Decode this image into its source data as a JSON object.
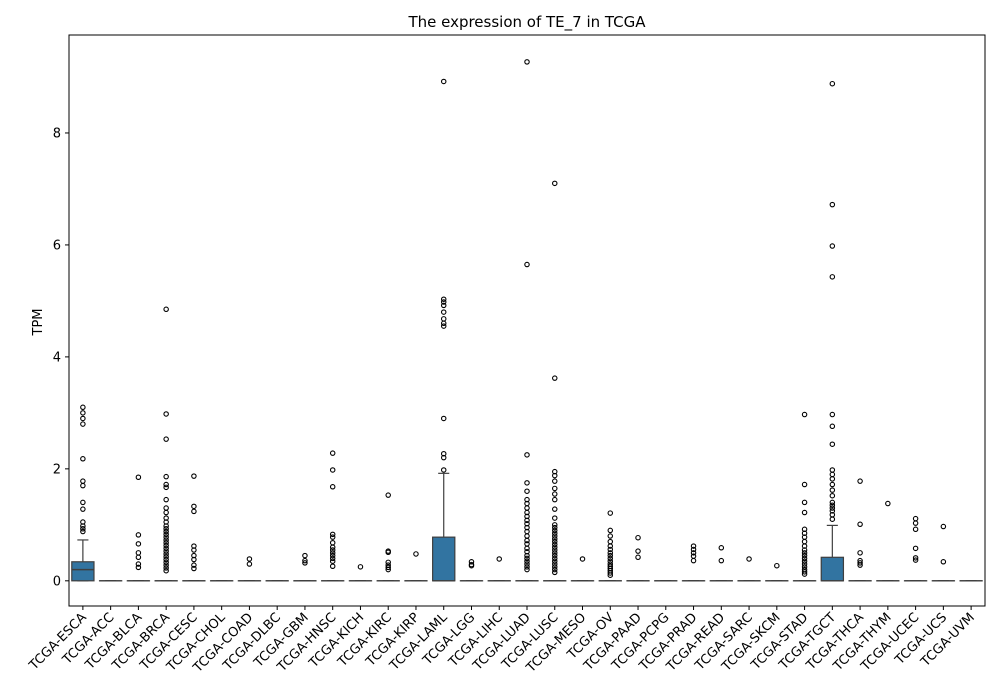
{
  "chart_data": {
    "type": "box",
    "title": "The expression of TE_7 in TCGA",
    "xlabel": "",
    "ylabel": "TPM",
    "ylim": [
      -0.45,
      9.75
    ],
    "yticks": [
      0,
      2,
      4,
      6,
      8
    ],
    "grid": false,
    "legend": "none",
    "box_color": "#3274a1",
    "categories": [
      "TCGA-ESCA",
      "TCGA-ACC",
      "TCGA-BLCA",
      "TCGA-BRCA",
      "TCGA-CESC",
      "TCGA-CHOL",
      "TCGA-COAD",
      "TCGA-DLBC",
      "TCGA-GBM",
      "TCGA-HNSC",
      "TCGA-KICH",
      "TCGA-KIRC",
      "TCGA-KIRP",
      "TCGA-LAML",
      "TCGA-LGG",
      "TCGA-LIHC",
      "TCGA-LUAD",
      "TCGA-LUSC",
      "TCGA-MESO",
      "TCGA-OV",
      "TCGA-PAAD",
      "TCGA-PCPG",
      "TCGA-PRAD",
      "TCGA-READ",
      "TCGA-SARC",
      "TCGA-SKCM",
      "TCGA-STAD",
      "TCGA-TGCT",
      "TCGA-THCA",
      "TCGA-THYM",
      "TCGA-UCEC",
      "TCGA-UCS",
      "TCGA-UVM"
    ],
    "boxes": [
      {
        "whislo": 0,
        "q1": 0,
        "med": 0.2,
        "q3": 0.34,
        "whishi": 0.73,
        "fliers": [
          3.1,
          3.0,
          2.9,
          2.8,
          2.18,
          1.78,
          1.7,
          1.4,
          1.28,
          1.05,
          0.98,
          0.93,
          0.88
        ]
      },
      {
        "whislo": 0,
        "q1": 0,
        "med": 0,
        "q3": 0,
        "whishi": 0,
        "fliers": []
      },
      {
        "whislo": 0,
        "q1": 0,
        "med": 0,
        "q3": 0,
        "whishi": 0,
        "fliers": [
          1.85,
          0.82,
          0.66,
          0.5,
          0.42,
          0.3,
          0.24
        ]
      },
      {
        "whislo": 0,
        "q1": 0,
        "med": 0,
        "q3": 0,
        "whishi": 0,
        "fliers": [
          4.85,
          2.98,
          2.53,
          1.86,
          1.72,
          1.67,
          1.45,
          1.3,
          1.22,
          1.12,
          1.05,
          0.98,
          0.93,
          0.88,
          0.83,
          0.78,
          0.73,
          0.68,
          0.63,
          0.58,
          0.53,
          0.48,
          0.43,
          0.38,
          0.33,
          0.28,
          0.23,
          0.18
        ]
      },
      {
        "whislo": 0,
        "q1": 0,
        "med": 0,
        "q3": 0,
        "whishi": 0,
        "fliers": [
          1.87,
          1.33,
          1.24,
          0.62,
          0.55,
          0.45,
          0.38,
          0.28,
          0.22
        ]
      },
      {
        "whislo": 0,
        "q1": 0,
        "med": 0,
        "q3": 0,
        "whishi": 0,
        "fliers": []
      },
      {
        "whislo": 0,
        "q1": 0,
        "med": 0,
        "q3": 0,
        "whishi": 0,
        "fliers": [
          0.39,
          0.3
        ]
      },
      {
        "whislo": 0,
        "q1": 0,
        "med": 0,
        "q3": 0,
        "whishi": 0,
        "fliers": []
      },
      {
        "whislo": 0,
        "q1": 0,
        "med": 0,
        "q3": 0,
        "whishi": 0,
        "fliers": [
          0.45,
          0.36,
          0.32
        ]
      },
      {
        "whislo": 0,
        "q1": 0,
        "med": 0,
        "q3": 0,
        "whishi": 0,
        "fliers": [
          2.28,
          1.98,
          1.68,
          0.83,
          0.78,
          0.68,
          0.6,
          0.55,
          0.5,
          0.45,
          0.4,
          0.35,
          0.26
        ]
      },
      {
        "whislo": 0,
        "q1": 0,
        "med": 0,
        "q3": 0,
        "whishi": 0,
        "fliers": [
          0.25
        ]
      },
      {
        "whislo": 0,
        "q1": 0,
        "med": 0,
        "q3": 0,
        "whishi": 0,
        "fliers": [
          1.53,
          0.53,
          0.51,
          0.33,
          0.28,
          0.24,
          0.2
        ]
      },
      {
        "whislo": 0,
        "q1": 0,
        "med": 0,
        "q3": 0,
        "whishi": 0,
        "fliers": [
          0.48
        ]
      },
      {
        "whislo": 0,
        "q1": 0,
        "med": 0,
        "q3": 0.78,
        "whishi": 1.92,
        "fliers": [
          8.92,
          5.03,
          4.98,
          4.92,
          4.8,
          4.68,
          4.6,
          4.55,
          2.9,
          2.27,
          2.2,
          1.98
        ]
      },
      {
        "whislo": 0,
        "q1": 0,
        "med": 0,
        "q3": 0,
        "whishi": 0,
        "fliers": [
          0.34,
          0.29,
          0.27
        ]
      },
      {
        "whislo": 0,
        "q1": 0,
        "med": 0,
        "q3": 0,
        "whishi": 0,
        "fliers": [
          0.39
        ]
      },
      {
        "whislo": 0,
        "q1": 0,
        "med": 0,
        "q3": 0,
        "whishi": 0,
        "fliers": [
          9.27,
          5.65,
          2.25,
          1.75,
          1.6,
          1.45,
          1.38,
          1.3,
          1.22,
          1.15,
          1.08,
          1.02,
          0.95,
          0.88,
          0.8,
          0.72,
          0.66,
          0.58,
          0.52,
          0.45,
          0.4,
          0.35,
          0.3,
          0.25,
          0.2
        ]
      },
      {
        "whislo": 0,
        "q1": 0,
        "med": 0,
        "q3": 0,
        "whishi": 0,
        "fliers": [
          7.1,
          3.62,
          1.95,
          1.88,
          1.78,
          1.65,
          1.55,
          1.45,
          1.28,
          1.12,
          1.0,
          0.95,
          0.9,
          0.85,
          0.8,
          0.75,
          0.7,
          0.65,
          0.6,
          0.55,
          0.5,
          0.45,
          0.4,
          0.35,
          0.3,
          0.25,
          0.2,
          0.15
        ]
      },
      {
        "whislo": 0,
        "q1": 0,
        "med": 0,
        "q3": 0,
        "whishi": 0,
        "fliers": [
          0.39
        ]
      },
      {
        "whislo": 0,
        "q1": 0,
        "med": 0,
        "q3": 0,
        "whishi": 0,
        "fliers": [
          1.21,
          0.9,
          0.8,
          0.7,
          0.62,
          0.56,
          0.5,
          0.45,
          0.4,
          0.35,
          0.3,
          0.26,
          0.22,
          0.18,
          0.14,
          0.1
        ]
      },
      {
        "whislo": 0,
        "q1": 0,
        "med": 0,
        "q3": 0,
        "whishi": 0,
        "fliers": [
          0.77,
          0.53,
          0.42
        ]
      },
      {
        "whislo": 0,
        "q1": 0,
        "med": 0,
        "q3": 0,
        "whishi": 0,
        "fliers": []
      },
      {
        "whislo": 0,
        "q1": 0,
        "med": 0,
        "q3": 0,
        "whishi": 0,
        "fliers": [
          0.62,
          0.56,
          0.5,
          0.44,
          0.36
        ]
      },
      {
        "whislo": 0,
        "q1": 0,
        "med": 0,
        "q3": 0,
        "whishi": 0,
        "fliers": [
          0.59,
          0.36
        ]
      },
      {
        "whislo": 0,
        "q1": 0,
        "med": 0,
        "q3": 0,
        "whishi": 0,
        "fliers": [
          0.39
        ]
      },
      {
        "whislo": 0,
        "q1": 0,
        "med": 0,
        "q3": 0,
        "whishi": 0,
        "fliers": [
          0.27
        ]
      },
      {
        "whislo": 0,
        "q1": 0,
        "med": 0,
        "q3": 0,
        "whishi": 0,
        "fliers": [
          2.97,
          1.72,
          1.4,
          1.22,
          0.92,
          0.85,
          0.78,
          0.7,
          0.62,
          0.55,
          0.5,
          0.45,
          0.4,
          0.35,
          0.3,
          0.25,
          0.2,
          0.16,
          0.12
        ]
      },
      {
        "whislo": 0,
        "q1": 0,
        "med": 0,
        "q3": 0.42,
        "whishi": 0.99,
        "fliers": [
          8.88,
          6.72,
          5.98,
          5.43,
          2.97,
          2.76,
          2.44,
          1.98,
          1.9,
          1.82,
          1.72,
          1.62,
          1.52,
          1.4,
          1.35,
          1.3,
          1.25,
          1.18,
          1.1
        ]
      },
      {
        "whislo": 0,
        "q1": 0,
        "med": 0,
        "q3": 0,
        "whishi": 0,
        "fliers": [
          1.78,
          1.01,
          0.5,
          0.36,
          0.32,
          0.28
        ]
      },
      {
        "whislo": 0,
        "q1": 0,
        "med": 0,
        "q3": 0,
        "whishi": 0,
        "fliers": [
          1.38
        ]
      },
      {
        "whislo": 0,
        "q1": 0,
        "med": 0,
        "q3": 0,
        "whishi": 0,
        "fliers": [
          1.11,
          1.03,
          0.92,
          0.58,
          0.41,
          0.37
        ]
      },
      {
        "whislo": 0,
        "q1": 0,
        "med": 0,
        "q3": 0,
        "whishi": 0,
        "fliers": [
          0.97,
          0.34
        ]
      },
      {
        "whislo": 0,
        "q1": 0,
        "med": 0,
        "q3": 0,
        "whishi": 0,
        "fliers": []
      }
    ]
  }
}
